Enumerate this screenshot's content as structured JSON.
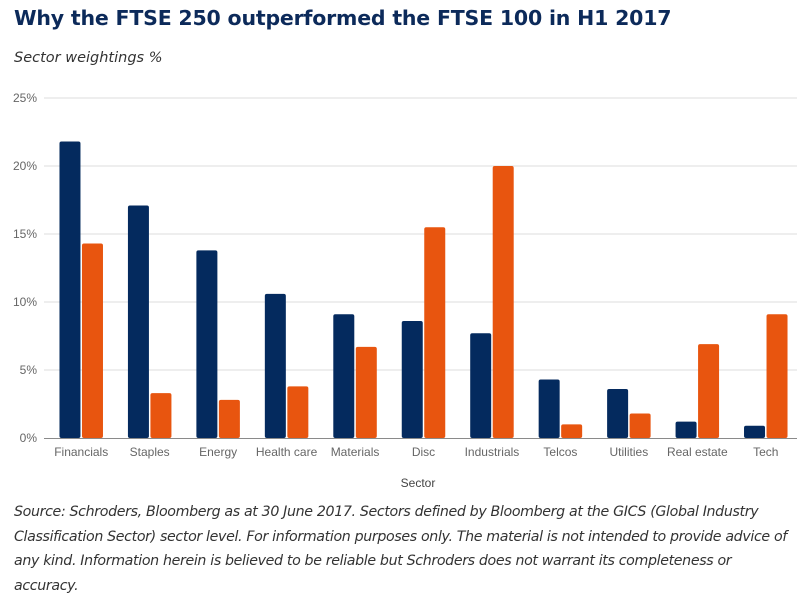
{
  "header": {
    "title": "Why the FTSE 250 outperformed the FTSE 100 in H1 2017",
    "subtitle": "Sector weightings %"
  },
  "chart_data": {
    "type": "bar",
    "title": "Why the FTSE 250 outperformed the FTSE 100 in H1 2017",
    "subtitle": "Sector weightings %",
    "xlabel": "Sector",
    "ylabel": "",
    "ylim": [
      0,
      25
    ],
    "yticks": [
      0,
      5,
      10,
      15,
      20,
      25
    ],
    "ytick_labels": [
      "0%",
      "5%",
      "10%",
      "15%",
      "20%",
      "25%"
    ],
    "grid": true,
    "legend": "none",
    "categories": [
      "Financials",
      "Staples",
      "Energy",
      "Health care",
      "Materials",
      "Disc",
      "Industrials",
      "Telcos",
      "Utilities",
      "Real estate",
      "Tech"
    ],
    "series": [
      {
        "name": "FTSE 100",
        "color": "#042a5e",
        "values": [
          21.8,
          17.1,
          13.8,
          10.6,
          9.1,
          8.6,
          7.7,
          4.3,
          3.6,
          1.2,
          0.9
        ]
      },
      {
        "name": "FTSE 250",
        "color": "#e8550f",
        "values": [
          14.3,
          3.3,
          2.8,
          3.8,
          6.7,
          15.5,
          20.0,
          1.0,
          1.8,
          6.9,
          9.1
        ]
      }
    ]
  },
  "footer": {
    "source": "Source: Schroders, Bloomberg as at 30 June 2017. Sectors defined by Bloomberg at the GICS (Global Industry Classification Sector) sector level. For information purposes only. The material is not intended to provide advice of any kind. Information herein is believed to be reliable but Schroders does not warrant its completeness or accuracy."
  }
}
